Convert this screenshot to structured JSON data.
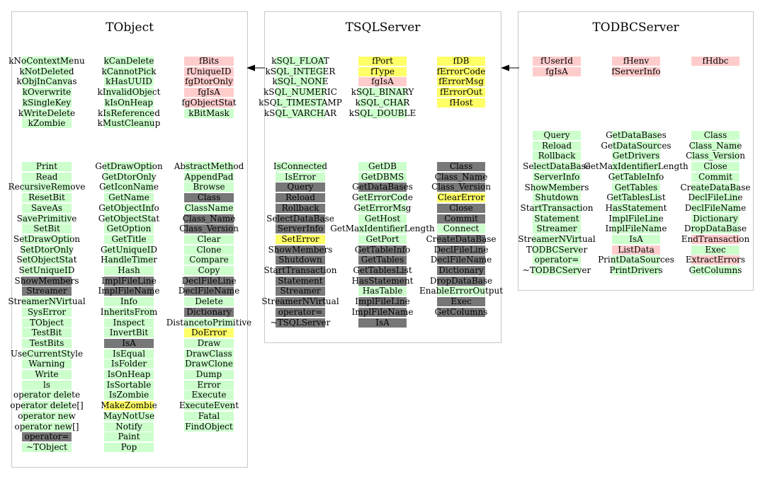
{
  "colors": {
    "green": "#ccffcc",
    "pink": "#ffcccc",
    "yellow": "#ffff66",
    "gray": "#777777",
    "border": "#c8c8c8",
    "arrow": "#000000"
  },
  "panels": [
    {
      "title": "TObject",
      "groups": [
        {
          "columns": [
            [
              [
                "kNoContextMenu",
                "g"
              ],
              [
                "kNotDeleted",
                "g"
              ],
              [
                "kObjInCanvas",
                "g"
              ],
              [
                "kOverwrite",
                "g"
              ],
              [
                "kSingleKey",
                "g"
              ],
              [
                "kWriteDelete",
                "g"
              ],
              [
                "kZombie",
                "g"
              ]
            ],
            [
              [
                "kCanDelete",
                "g"
              ],
              [
                "kCannotPick",
                "g"
              ],
              [
                "kHasUUID",
                "g"
              ],
              [
                "kInvalidObject",
                "g"
              ],
              [
                "kIsOnHeap",
                "g"
              ],
              [
                "kIsReferenced",
                "g"
              ],
              [
                "kMustCleanup",
                "g"
              ]
            ],
            [
              [
                "fBits",
                "p"
              ],
              [
                "fUniqueID",
                "p"
              ],
              [
                "fgDtorOnly",
                "p"
              ],
              [
                "fgIsA",
                "p"
              ],
              [
                "fgObjectStat",
                "p"
              ],
              [
                "kBitMask",
                "g"
              ]
            ]
          ]
        },
        {
          "columns": [
            [
              [
                "Print",
                "g"
              ],
              [
                "Read",
                "g"
              ],
              [
                "RecursiveRemove",
                "g"
              ],
              [
                "ResetBit",
                "g"
              ],
              [
                "SaveAs",
                "g"
              ],
              [
                "SavePrimitive",
                "g"
              ],
              [
                "SetBit",
                "g"
              ],
              [
                "SetDrawOption",
                "g"
              ],
              [
                "SetDtorOnly",
                "g"
              ],
              [
                "SetObjectStat",
                "g"
              ],
              [
                "SetUniqueID",
                "g"
              ],
              [
                "ShowMembers",
                "d"
              ],
              [
                "Streamer",
                "d"
              ],
              [
                "StreamerNVirtual",
                "g"
              ],
              [
                "SysError",
                "g"
              ],
              [
                "TObject",
                "g"
              ],
              [
                "TestBit",
                "g"
              ],
              [
                "TestBits",
                "g"
              ],
              [
                "UseCurrentStyle",
                "g"
              ],
              [
                "Warning",
                "g"
              ],
              [
                "Write",
                "g"
              ],
              [
                "ls",
                "g"
              ],
              [
                "operator delete",
                "g"
              ],
              [
                "operator delete[]",
                "g"
              ],
              [
                "operator new",
                "g"
              ],
              [
                "operator new[]",
                "g"
              ],
              [
                "operator=",
                "d"
              ],
              [
                "~TObject",
                "g"
              ]
            ],
            [
              [
                "GetDrawOption",
                "g"
              ],
              [
                "GetDtorOnly",
                "g"
              ],
              [
                "GetIconName",
                "g"
              ],
              [
                "GetName",
                "g"
              ],
              [
                "GetObjectInfo",
                "g"
              ],
              [
                "GetObjectStat",
                "g"
              ],
              [
                "GetOption",
                "g"
              ],
              [
                "GetTitle",
                "g"
              ],
              [
                "GetUniqueID",
                "g"
              ],
              [
                "HandleTimer",
                "g"
              ],
              [
                "Hash",
                "g"
              ],
              [
                "ImplFileLine",
                "d"
              ],
              [
                "ImplFileName",
                "d"
              ],
              [
                "Info",
                "g"
              ],
              [
                "InheritsFrom",
                "g"
              ],
              [
                "Inspect",
                "g"
              ],
              [
                "InvertBit",
                "g"
              ],
              [
                "IsA",
                "d"
              ],
              [
                "IsEqual",
                "g"
              ],
              [
                "IsFolder",
                "g"
              ],
              [
                "IsOnHeap",
                "g"
              ],
              [
                "IsSortable",
                "g"
              ],
              [
                "IsZombie",
                "g"
              ],
              [
                "MakeZombie",
                "y"
              ],
              [
                "MayNotUse",
                "g"
              ],
              [
                "Notify",
                "g"
              ],
              [
                "Paint",
                "g"
              ],
              [
                "Pop",
                "g"
              ]
            ],
            [
              [
                "AbstractMethod",
                "g"
              ],
              [
                "AppendPad",
                "g"
              ],
              [
                "Browse",
                "g"
              ],
              [
                "Class",
                "d"
              ],
              [
                "ClassName",
                "g"
              ],
              [
                "Class_Name",
                "d"
              ],
              [
                "Class_Version",
                "d"
              ],
              [
                "Clear",
                "g"
              ],
              [
                "Clone",
                "g"
              ],
              [
                "Compare",
                "g"
              ],
              [
                "Copy",
                "g"
              ],
              [
                "DeclFileLine",
                "d"
              ],
              [
                "DeclFileName",
                "d"
              ],
              [
                "Delete",
                "g"
              ],
              [
                "Dictionary",
                "d"
              ],
              [
                "DistancetoPrimitive",
                "g"
              ],
              [
                "DoError",
                "y"
              ],
              [
                "Draw",
                "g"
              ],
              [
                "DrawClass",
                "g"
              ],
              [
                "DrawClone",
                "g"
              ],
              [
                "Dump",
                "g"
              ],
              [
                "Error",
                "g"
              ],
              [
                "Execute",
                "g"
              ],
              [
                "ExecuteEvent",
                "g"
              ],
              [
                "Fatal",
                "g"
              ],
              [
                "FindObject",
                "g"
              ]
            ]
          ]
        }
      ]
    },
    {
      "title": "TSQLServer",
      "groups": [
        {
          "columns": [
            [
              [
                "kSQL_FLOAT",
                "g"
              ],
              [
                "kSQL_INTEGER",
                "g"
              ],
              [
                "kSQL_NONE",
                "g"
              ],
              [
                "kSQL_NUMERIC",
                "g"
              ],
              [
                "kSQL_TIMESTAMP",
                "g"
              ],
              [
                "kSQL_VARCHAR",
                "g"
              ]
            ],
            [
              [
                "fPort",
                "y"
              ],
              [
                "fType",
                "y"
              ],
              [
                "fgIsA",
                "p"
              ],
              [
                "kSQL_BINARY",
                "g"
              ],
              [
                "kSQL_CHAR",
                "g"
              ],
              [
                "kSQL_DOUBLE",
                "g"
              ]
            ],
            [
              [
                "fDB",
                "y"
              ],
              [
                "fErrorCode",
                "y"
              ],
              [
                "fErrorMsg",
                "y"
              ],
              [
                "fErrorOut",
                "y"
              ],
              [
                "fHost",
                "y"
              ]
            ]
          ]
        },
        {
          "columns": [
            [
              [
                "IsConnected",
                "g"
              ],
              [
                "IsError",
                "g"
              ],
              [
                "Query",
                "d"
              ],
              [
                "Reload",
                "d"
              ],
              [
                "Rollback",
                "d"
              ],
              [
                "SelectDataBase",
                "d"
              ],
              [
                "ServerInfo",
                "d"
              ],
              [
                "SetError",
                "y"
              ],
              [
                "ShowMembers",
                "d"
              ],
              [
                "Shutdown",
                "d"
              ],
              [
                "StartTransaction",
                "d"
              ],
              [
                "Statement",
                "d"
              ],
              [
                "Streamer",
                "d"
              ],
              [
                "StreamerNVirtual",
                "d"
              ],
              [
                "operator=",
                "d"
              ],
              [
                "~TSQLServer",
                "d"
              ]
            ],
            [
              [
                "GetDB",
                "g"
              ],
              [
                "GetDBMS",
                "g"
              ],
              [
                "GetDataBases",
                "d"
              ],
              [
                "GetErrorCode",
                "g"
              ],
              [
                "GetErrorMsg",
                "g"
              ],
              [
                "GetHost",
                "g"
              ],
              [
                "GetMaxIdentifierLength",
                "g"
              ],
              [
                "GetPort",
                "g"
              ],
              [
                "GetTableInfo",
                "d"
              ],
              [
                "GetTables",
                "d"
              ],
              [
                "GetTablesList",
                "d"
              ],
              [
                "HasStatement",
                "d"
              ],
              [
                "HasTable",
                "g"
              ],
              [
                "ImplFileLine",
                "d"
              ],
              [
                "ImplFileName",
                "d"
              ],
              [
                "IsA",
                "d"
              ]
            ],
            [
              [
                "Class",
                "d"
              ],
              [
                "Class_Name",
                "d"
              ],
              [
                "Class_Version",
                "d"
              ],
              [
                "ClearError",
                "y"
              ],
              [
                "Close",
                "d"
              ],
              [
                "Commit",
                "d"
              ],
              [
                "Connect",
                "g"
              ],
              [
                "CreateDataBase",
                "d"
              ],
              [
                "DeclFileLine",
                "d"
              ],
              [
                "DeclFileName",
                "d"
              ],
              [
                "Dictionary",
                "d"
              ],
              [
                "DropDataBase",
                "d"
              ],
              [
                "EnableErrorOutput",
                "g"
              ],
              [
                "Exec",
                "d"
              ],
              [
                "GetColumns",
                "d"
              ]
            ]
          ]
        }
      ]
    },
    {
      "title": "TODBCServer",
      "groups": [
        {
          "columns": [
            [
              [
                "fUserId",
                "p"
              ],
              [
                "fgIsA",
                "p"
              ]
            ],
            [
              [
                "fHenv",
                "p"
              ],
              [
                "fServerInfo",
                "p"
              ]
            ],
            [
              [
                "fHdbc",
                "p"
              ]
            ]
          ]
        },
        {
          "columns": [
            [
              [
                "Query",
                "g"
              ],
              [
                "Reload",
                "g"
              ],
              [
                "Rollback",
                "g"
              ],
              [
                "SelectDataBase",
                "g"
              ],
              [
                "ServerInfo",
                "g"
              ],
              [
                "ShowMembers",
                "g"
              ],
              [
                "Shutdown",
                "g"
              ],
              [
                "StartTransaction",
                "g"
              ],
              [
                "Statement",
                "g"
              ],
              [
                "Streamer",
                "g"
              ],
              [
                "StreamerNVirtual",
                "g"
              ],
              [
                "TODBCServer",
                "g"
              ],
              [
                "operator=",
                "g"
              ],
              [
                "~TODBCServer",
                "g"
              ]
            ],
            [
              [
                "GetDataBases",
                "g"
              ],
              [
                "GetDataSources",
                "g"
              ],
              [
                "GetDrivers",
                "g"
              ],
              [
                "GetMaxIdentifierLength",
                "g"
              ],
              [
                "GetTableInfo",
                "g"
              ],
              [
                "GetTables",
                "g"
              ],
              [
                "GetTablesList",
                "g"
              ],
              [
                "HasStatement",
                "g"
              ],
              [
                "ImplFileLine",
                "g"
              ],
              [
                "ImplFileName",
                "g"
              ],
              [
                "IsA",
                "g"
              ],
              [
                "ListData",
                "p"
              ],
              [
                "PrintDataSources",
                "g"
              ],
              [
                "PrintDrivers",
                "g"
              ]
            ],
            [
              [
                "Class",
                "g"
              ],
              [
                "Class_Name",
                "g"
              ],
              [
                "Class_Version",
                "g"
              ],
              [
                "Close",
                "g"
              ],
              [
                "Commit",
                "g"
              ],
              [
                "CreateDataBase",
                "g"
              ],
              [
                "DeclFileLine",
                "g"
              ],
              [
                "DeclFileName",
                "g"
              ],
              [
                "Dictionary",
                "g"
              ],
              [
                "DropDataBase",
                "g"
              ],
              [
                "EndTransaction",
                "p"
              ],
              [
                "Exec",
                "g"
              ],
              [
                "ExtractErrors",
                "p"
              ],
              [
                "GetColumns",
                "g"
              ]
            ]
          ]
        }
      ]
    }
  ]
}
